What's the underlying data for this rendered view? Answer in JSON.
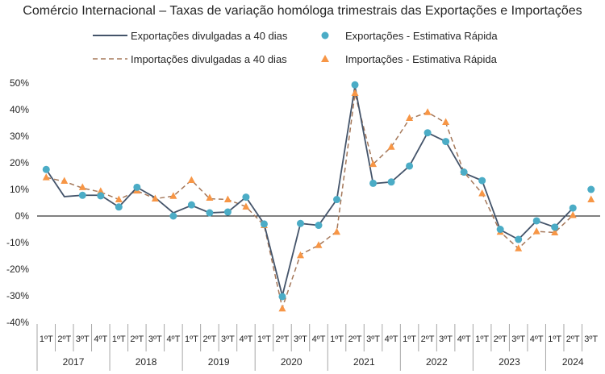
{
  "title": "Comércio Internacional – Taxas de variação homóloga trimestrais das Exportações e Importações",
  "legend": {
    "exp_line": "Exportações divulgadas a 40 dias",
    "exp_dots": "Exportações - Estimativa Rápida",
    "imp_line": "Importações divulgadas a 40 dias",
    "imp_dots": "Importações - Estimativa Rápida"
  },
  "colors": {
    "exp_line": "#44546a",
    "exp_dots": "#4bacc6",
    "imp_line": "#a5785a",
    "imp_dots": "#f79646",
    "zero_axis": "#000000",
    "separators": "#a6a6a6"
  },
  "chart_data": {
    "type": "line",
    "title": "Comércio Internacional – Taxas de variação homóloga trimestrais das Exportações e Importações",
    "xlabel": "",
    "ylabel": "",
    "ylim": [
      -40,
      50
    ],
    "yticks": [
      "50%",
      "40%",
      "30%",
      "20%",
      "10%",
      "0%",
      "-10%",
      "-20%",
      "-30%",
      "-40%"
    ],
    "yticks_values": [
      50,
      40,
      30,
      20,
      10,
      0,
      -10,
      -20,
      -30,
      -40
    ],
    "grid": false,
    "legend_position": "top",
    "quarter_labels": [
      "1ºT",
      "2ºT",
      "3ºT",
      "4ºT",
      "1ºT",
      "2ºT",
      "3ºT",
      "4ºT",
      "1ºT",
      "2ºT",
      "3ºT",
      "4ºT",
      "1ºT",
      "2ºT",
      "3ºT",
      "4ºT",
      "1ºT",
      "2ºT",
      "3ºT",
      "4ºT",
      "1ºT",
      "2ºT",
      "3ºT",
      "4ºT",
      "1ºT",
      "2ºT",
      "3ºT",
      "4ºT",
      "1ºT",
      "2ºT",
      "3ºT"
    ],
    "years": [
      {
        "label": "2017",
        "quarters": 4
      },
      {
        "label": "2018",
        "quarters": 4
      },
      {
        "label": "2019",
        "quarters": 4
      },
      {
        "label": "2020",
        "quarters": 4
      },
      {
        "label": "2021",
        "quarters": 4
      },
      {
        "label": "2022",
        "quarters": 4
      },
      {
        "label": "2023",
        "quarters": 4
      },
      {
        "label": "2024",
        "quarters": 3
      }
    ],
    "series": [
      {
        "name": "Exportações divulgadas a 40 dias",
        "kind": "line",
        "values": [
          17.5,
          7.3,
          7.8,
          7.8,
          3.4,
          10.8,
          6.9,
          1.2,
          4.0,
          1.2,
          1.5,
          7.1,
          -3.0,
          -30.0,
          -2.8,
          -3.5,
          6.2,
          48.8,
          12.2,
          12.8,
          18.8,
          31.3,
          28.0,
          16.2,
          13.3,
          -5.2,
          -8.8,
          -1.8,
          -4.2,
          3.0,
          null
        ]
      },
      {
        "name": "Exportações - Estimativa Rápida",
        "kind": "dots",
        "values": [
          17.5,
          null,
          7.8,
          7.6,
          3.4,
          10.8,
          null,
          0.0,
          4.2,
          1.2,
          1.5,
          7.1,
          -3.0,
          -30.3,
          -2.8,
          -3.5,
          6.2,
          49.3,
          12.3,
          12.8,
          18.8,
          31.3,
          28.0,
          16.5,
          13.3,
          -5.0,
          -8.8,
          -1.8,
          -4.2,
          3.0,
          10.0
        ]
      },
      {
        "name": "Importações divulgadas a 40 dias",
        "kind": "line",
        "values": [
          14.5,
          13.0,
          10.5,
          9.0,
          6.2,
          9.5,
          6.5,
          7.5,
          13.5,
          6.5,
          6.2,
          3.5,
          -3.5,
          -34.5,
          -14.5,
          -11.0,
          -5.8,
          46.0,
          19.5,
          26.0,
          36.5,
          39.0,
          35.0,
          16.5,
          8.5,
          -6.0,
          -12.2,
          -5.8,
          -6.2,
          0.3,
          null
        ]
      },
      {
        "name": "Importações - Estimativa Rápida",
        "kind": "dots",
        "values": [
          14.5,
          13.2,
          10.8,
          9.3,
          6.2,
          9.5,
          6.5,
          7.5,
          13.5,
          6.8,
          6.2,
          3.5,
          -3.5,
          -34.8,
          -14.8,
          -11.0,
          -6.0,
          46.2,
          19.5,
          26.0,
          36.8,
          39.0,
          35.3,
          16.5,
          8.5,
          -6.0,
          -12.2,
          -5.8,
          -6.2,
          0.3,
          6.2
        ]
      }
    ]
  }
}
